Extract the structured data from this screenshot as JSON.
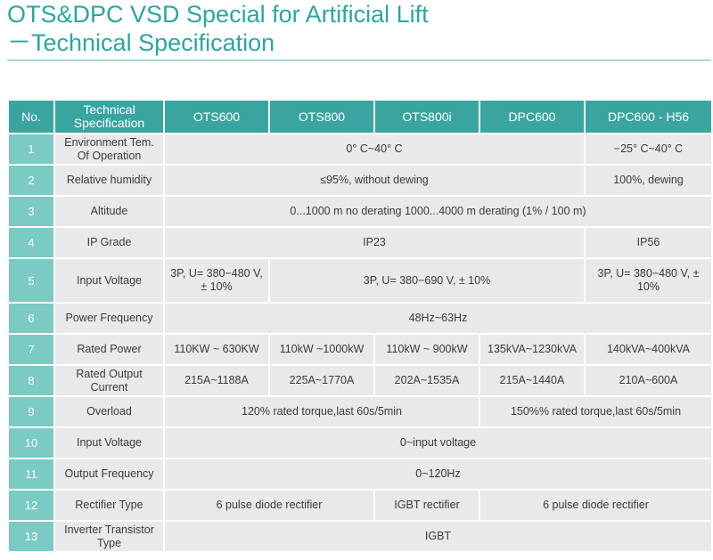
{
  "header": {
    "title": "OTS&DPC VSD Special for Artificial Lift",
    "subtitle": "－Technical Specification"
  },
  "table": {
    "columns": [
      "No.",
      "Technical Specification",
      "OTS600",
      "OTS800",
      "OTS800i",
      "DPC600",
      "DPC600 - H56"
    ],
    "rows": [
      {
        "no": "1",
        "name": "Environment Tem. Of Operation",
        "v1": "0° C~40° C",
        "v2": "−25° C~40° C"
      },
      {
        "no": "2",
        "name": "Relative humidity",
        "v1": "≤95%, without dewing",
        "v2": "100%, dewing"
      },
      {
        "no": "3",
        "name": "Altitude",
        "v1": "0...1000 m no derating 1000...4000 m derating (1% / 100 m)"
      },
      {
        "no": "4",
        "name": "IP Grade",
        "v1": "IP23",
        "v2": "IP56"
      },
      {
        "no": "5",
        "name": "Input Voltage",
        "v1": "3P, U= 380−480 V, ± 10%",
        "v2": "3P, U= 380−690 V, ± 10%",
        "v3": "3P, U= 380−480 V, ± 10%"
      },
      {
        "no": "6",
        "name": "Power Frequency",
        "v1": "48Hz~63Hz"
      },
      {
        "no": "7",
        "name": "Rated Power",
        "v1": "110KW ~ 630KW",
        "v2": "110kW ~1000kW",
        "v3": "110kW ~ 900kW",
        "v4": "135kVA~1230kVA",
        "v5": "140kVA~400kVA"
      },
      {
        "no": "8",
        "name": "Rated Output Current",
        "v1": "215A~1188A",
        "v2": "225A~1770A",
        "v3": "202A~1535A",
        "v4": "215A~1440A",
        "v5": "210A~600A"
      },
      {
        "no": "9",
        "name": "Overload",
        "v1": "120% rated torque,last 60s/5min",
        "v2": "150%% rated torque,last 60s/5min"
      },
      {
        "no": "10",
        "name": "Input Voltage",
        "v1": "0~input voltage"
      },
      {
        "no": "11",
        "name": "Output Frequency",
        "v1": "0~120Hz"
      },
      {
        "no": "12",
        "name": "Rectifier Type",
        "v1": "6 pulse diode rectifier",
        "v2": "IGBT rectifier",
        "v3": "6 pulse diode rectifier"
      },
      {
        "no": "13",
        "name": "Inverter Transistor Type",
        "v1": "IGBT"
      }
    ]
  }
}
